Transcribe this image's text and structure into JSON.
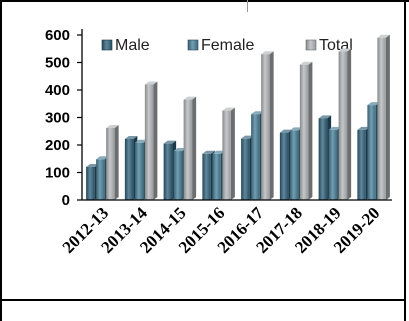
{
  "chart_data": {
    "type": "bar",
    "categories": [
      "2012-13",
      "2013-14",
      "2014-15",
      "2015-16",
      "2016-17",
      "2017-18",
      "2018-19",
      "2019-20"
    ],
    "series": [
      {
        "name": "Male",
        "values": [
          120,
          222,
          205,
          168,
          223,
          245,
          297,
          255
        ]
      },
      {
        "name": "Female",
        "values": [
          148,
          208,
          178,
          168,
          312,
          253,
          255,
          345
        ]
      },
      {
        "name": "Total",
        "values": [
          262,
          420,
          365,
          325,
          530,
          492,
          540,
          590
        ]
      }
    ],
    "ylim": [
      0,
      600
    ],
    "yticks": [
      0,
      100,
      200,
      300,
      400,
      500,
      600
    ],
    "legend_position": "top",
    "grid": false,
    "style": "3d-clustered-column"
  },
  "colors": {
    "Male": "#2f5f78",
    "Female": "#467d96",
    "Total": "#b2b5b8"
  }
}
